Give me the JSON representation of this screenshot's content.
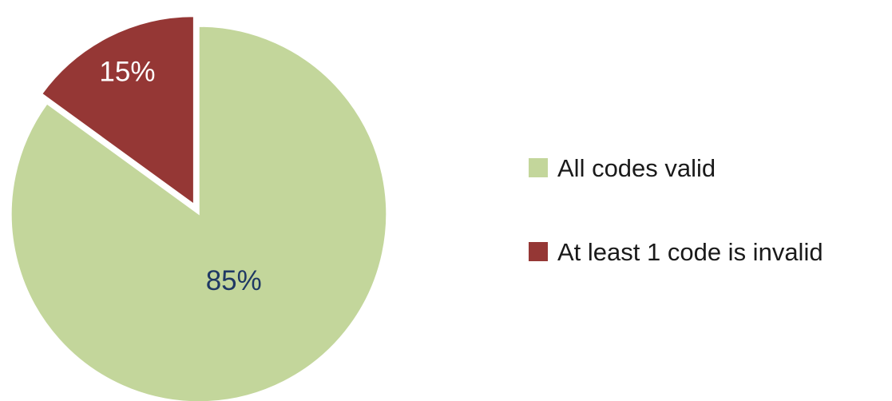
{
  "chart_data": {
    "type": "pie",
    "title": "",
    "slices": [
      {
        "label": "All codes valid",
        "value": 85,
        "display": "85%",
        "color": "#c3d69b",
        "label_color": "#1f3864",
        "exploded": false
      },
      {
        "label": "At least 1 code is invalid",
        "value": 15,
        "display": "15%",
        "color": "#953735",
        "label_color": "#ffffff",
        "exploded": true
      }
    ],
    "legend": {
      "placement": "right",
      "entries": [
        "All codes valid",
        "At least 1 code is invalid"
      ]
    }
  }
}
